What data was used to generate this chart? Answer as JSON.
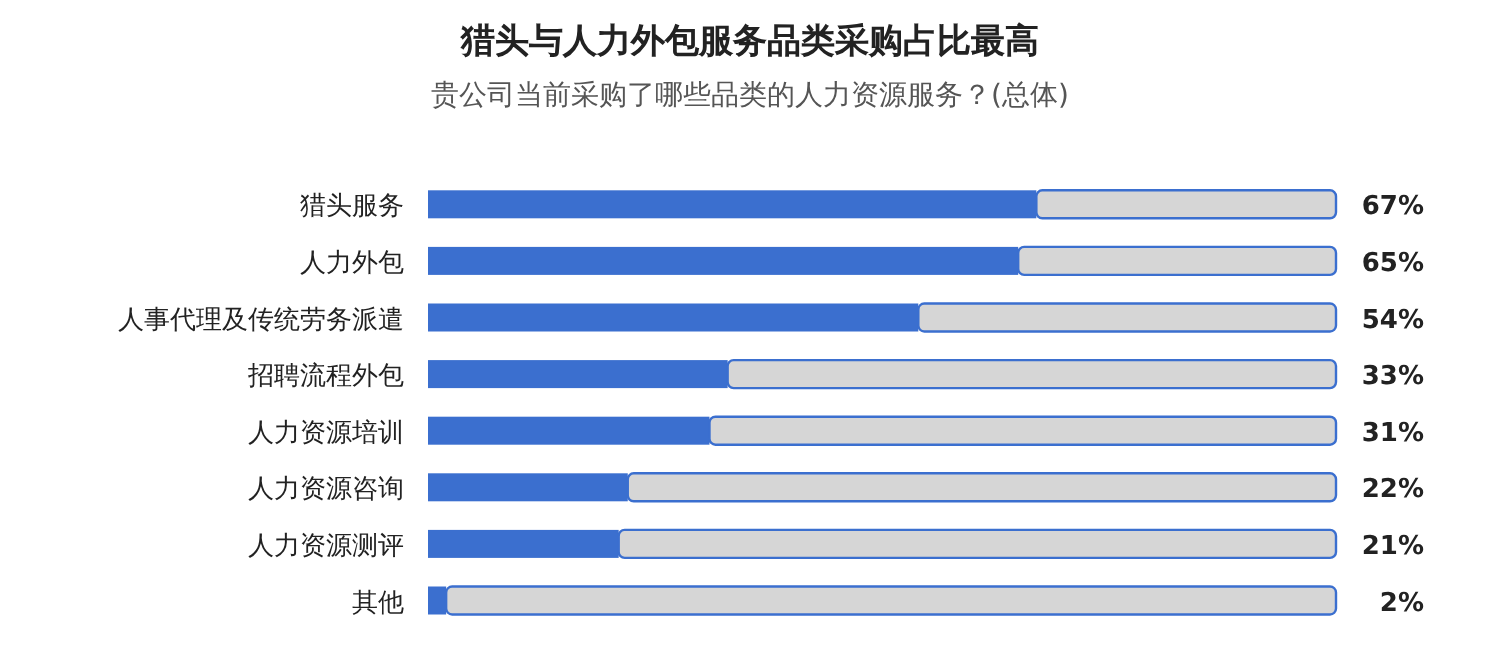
{
  "chart_data": {
    "type": "bar",
    "orientation": "horizontal",
    "stacked": true,
    "title": "猎头与人力外包服务品类采购占比最高",
    "subtitle": "贵公司当前采购了哪些品类的人力资源服务？(总体)",
    "categories": [
      "猎头服务",
      "人力外包",
      "人事代理及传统劳务派遣",
      "招聘流程外包",
      "人力资源培训",
      "人力资源咨询",
      "人力资源测评",
      "其他"
    ],
    "xlim": [
      0,
      100
    ],
    "tick_labels": "y",
    "series": [
      {
        "color": "#3b6fcf",
        "values": [
          67,
          65,
          54,
          33,
          31,
          22,
          21,
          2
        ],
        "value_labels": [
          "67%",
          "65%",
          "54%",
          "33%",
          "31%",
          "22%",
          "21%",
          "2%"
        ]
      },
      {
        "color": "#d6d6d6",
        "values": [
          33,
          35,
          46,
          67,
          69,
          78,
          79,
          98
        ]
      }
    ]
  }
}
